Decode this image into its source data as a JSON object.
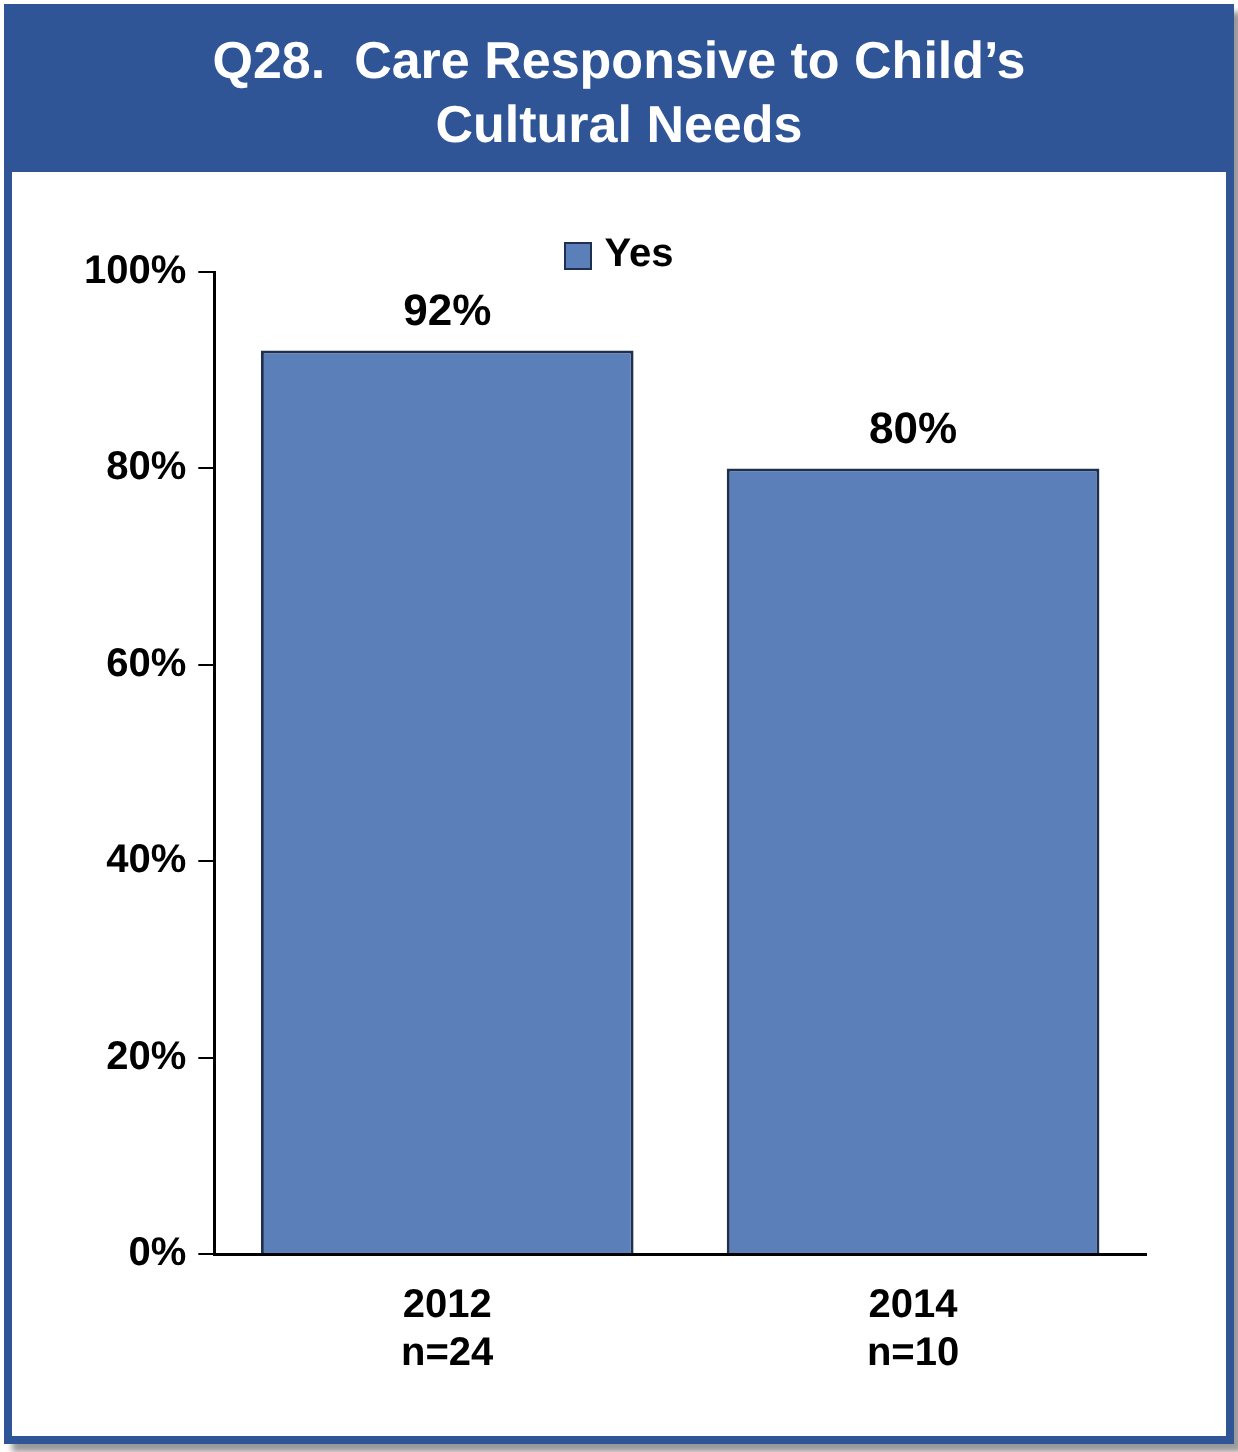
{
  "chart_data": {
    "type": "bar",
    "title": "Q28.  Care Responsive to Child’s Cultural Needs",
    "categories": [
      "2012\nn=24",
      "2014\nn=10"
    ],
    "series": [
      {
        "name": "Yes",
        "color": "#5a7fb9",
        "values": [
          92,
          80
        ],
        "value_labels": [
          "92%",
          "80%"
        ]
      }
    ],
    "ylim": [
      0,
      100
    ],
    "yticks": [
      {
        "value": 0,
        "label": "0%"
      },
      {
        "value": 20,
        "label": "20%"
      },
      {
        "value": 40,
        "label": "40%"
      },
      {
        "value": 60,
        "label": "60%"
      },
      {
        "value": 80,
        "label": "80%"
      },
      {
        "value": 100,
        "label": "100%"
      }
    ],
    "grid": false,
    "legend": "top"
  }
}
